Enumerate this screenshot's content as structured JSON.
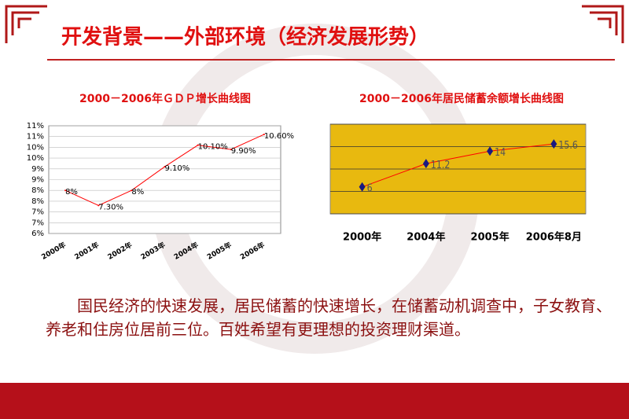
{
  "title": "开发背景——外部环境（经济发展形势）",
  "paragraph": "国民经济的快速发展，居民储蓄的快速增长，在储蓄动机调查中，子女教育、养老和住房位居前三位。百姓希望有更理想的投资理财渠道。",
  "chart_data": [
    {
      "type": "line",
      "title": "2000－2006年ＧＤＰ增长曲线图",
      "categories": [
        "2000年",
        "2001年",
        "2002年",
        "2003年",
        "2004年",
        "2005年",
        "2006年"
      ],
      "values": [
        8,
        7.3,
        8,
        9.1,
        10.1,
        9.9,
        10.6
      ],
      "value_labels": [
        "8%",
        "7.30%",
        "8%",
        "9.10%",
        "10.10%",
        "9.90%",
        "10.60%"
      ],
      "color": "#ff0000",
      "ylim": [
        6,
        11
      ],
      "yticks": [
        {
          "value": 6,
          "label": "6%"
        },
        {
          "value": 6.5,
          "label": "7%"
        },
        {
          "value": 7,
          "label": "7%"
        },
        {
          "value": 7.5,
          "label": "8%"
        },
        {
          "value": 8,
          "label": "8%"
        },
        {
          "value": 8.5,
          "label": "9%"
        },
        {
          "value": 9,
          "label": "9%"
        },
        {
          "value": 9.5,
          "label": "10%"
        },
        {
          "value": 10,
          "label": "10%"
        },
        {
          "value": 10.5,
          "label": "11%"
        },
        {
          "value": 11,
          "label": "11%"
        }
      ],
      "grid": true
    },
    {
      "type": "line",
      "title": "2000－2006年居民储蓄余额增长曲线图",
      "categories": [
        "2000年",
        "2004年",
        "2005年",
        "2006年8月"
      ],
      "values": [
        6,
        11.2,
        14,
        15.6
      ],
      "color": "#ff0000",
      "marker_color": "#1a1a80",
      "background": "#e8b90f",
      "ylim": [
        0,
        20
      ],
      "yticks": [
        0,
        5,
        10,
        15,
        20
      ],
      "grid": true
    }
  ]
}
